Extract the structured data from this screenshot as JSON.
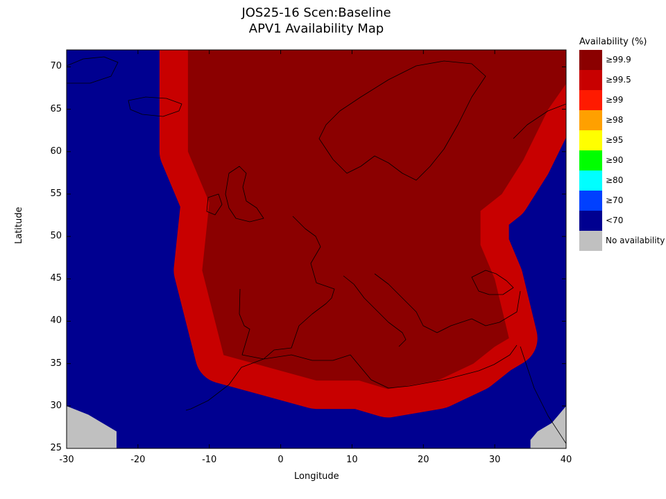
{
  "title": {
    "line1": "JOS25-16 Scen:Baseline",
    "line2": "APV1 Availability Map"
  },
  "chart_data": {
    "type": "heatmap",
    "projection": "equirectangular",
    "xlabel": "Longitude",
    "ylabel": "Latitude",
    "xlim": [
      -30,
      40
    ],
    "ylim": [
      25,
      72
    ],
    "xticks": [
      -30,
      -20,
      -10,
      0,
      10,
      20,
      30,
      40
    ],
    "yticks": [
      25,
      30,
      35,
      40,
      45,
      50,
      55,
      60,
      65,
      70
    ],
    "grid": false,
    "legend_placement": "right",
    "legend_title": "Availability (%)",
    "legend": [
      {
        "label": "≥99.9",
        "color": "#8b0000"
      },
      {
        "label": "≥99.5",
        "color": "#c80000"
      },
      {
        "label": "≥99",
        "color": "#ff1a00"
      },
      {
        "label": "≥98",
        "color": "#ffa000"
      },
      {
        "label": "≥95",
        "color": "#ffff00"
      },
      {
        "label": "≥90",
        "color": "#00ff00"
      },
      {
        "label": "≥80",
        "color": "#00ffff"
      },
      {
        "label": "≥70",
        "color": "#0040ff"
      },
      {
        "label": "<70",
        "color": "#000090"
      },
      {
        "label": "No availability",
        "color": "#c0c0c0"
      }
    ],
    "coverage_boundary_99_9": {
      "lon": [
        -13,
        -13,
        -10,
        -11,
        -8,
        5,
        11,
        15,
        22,
        27,
        30,
        32,
        30,
        28,
        28,
        31,
        34,
        37.5,
        40,
        40,
        -13
      ],
      "lat": [
        72,
        60,
        54,
        46,
        36,
        33,
        33,
        32,
        33,
        35,
        37,
        38,
        45,
        49,
        53,
        55,
        59,
        65,
        68,
        72,
        72
      ]
    },
    "no_availability_regions": [
      {
        "lon": [
          -30,
          -27,
          -25,
          -23,
          -23,
          -30
        ],
        "lat": [
          30,
          29,
          28,
          27,
          25,
          25
        ]
      },
      {
        "lon": [
          40,
          39,
          38,
          36,
          35,
          35,
          40
        ],
        "lat": [
          30,
          29,
          28,
          27,
          26,
          25,
          25
        ]
      }
    ]
  }
}
